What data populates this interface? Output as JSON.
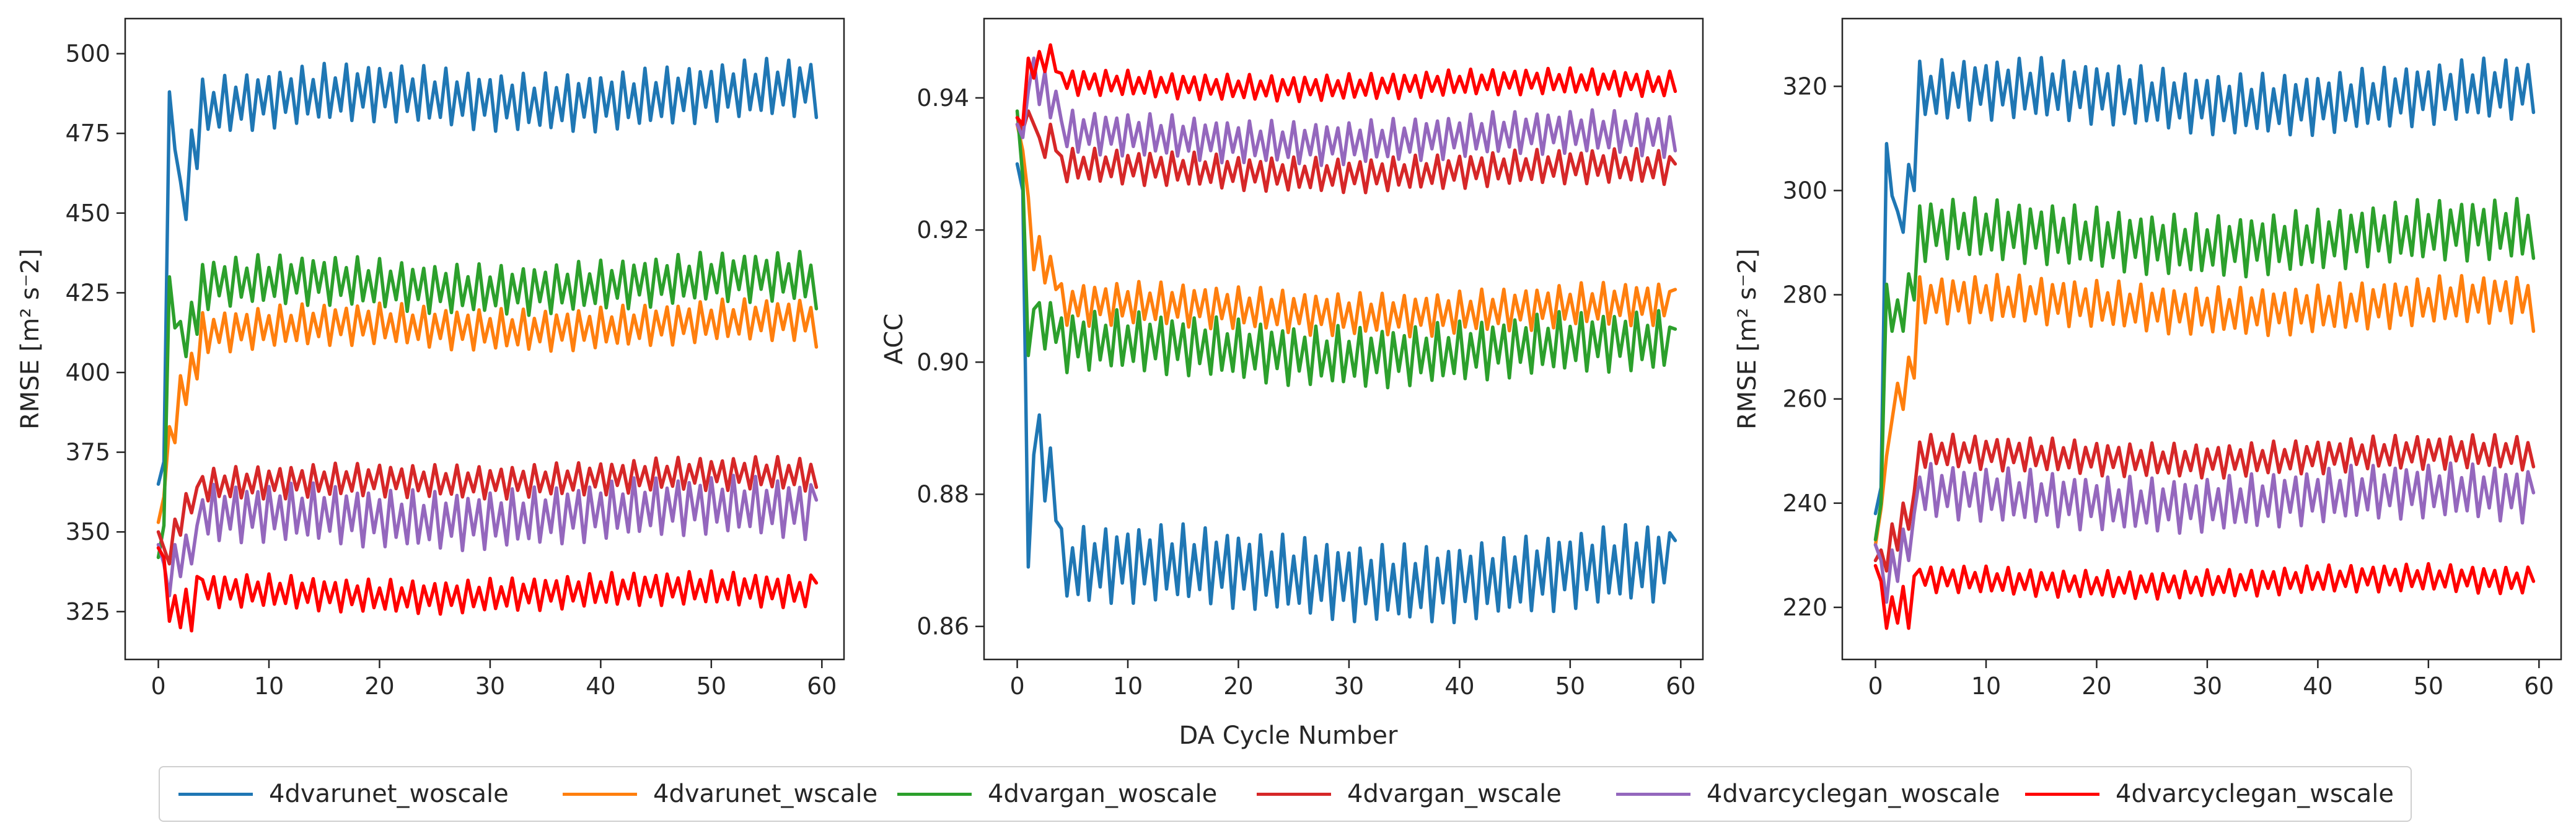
{
  "shared_xlabel": "DA Cycle Number",
  "legend": {
    "placement": "bottom-center",
    "entries": [
      {
        "label": "4dvarunet_woscale",
        "color": "#1f77b4"
      },
      {
        "label": "4dvarunet_wscale",
        "color": "#ff7f0e"
      },
      {
        "label": "4dvargan_woscale",
        "color": "#2ca02c"
      },
      {
        "label": "4dvargan_wscale",
        "color": "#d62728"
      },
      {
        "label": "4dvarcyclegan_woscale",
        "color": "#9467bd"
      },
      {
        "label": "4dvarcyclegan_wscale",
        "color": "#ff0000"
      }
    ]
  },
  "chart_data": [
    {
      "type": "line",
      "ylabel": "RMSE [m² s⁻2]",
      "xlim": [
        -3,
        62
      ],
      "ylim": [
        310,
        511
      ],
      "xticks": [
        0,
        10,
        20,
        30,
        40,
        50,
        60
      ],
      "yticks": [
        325,
        350,
        375,
        400,
        425,
        450,
        475,
        500
      ],
      "grid": false,
      "x_start": 0,
      "x_step": 0.5,
      "series": [
        {
          "name": "4dvarunet_woscale",
          "color": "#1f77b4",
          "start": 365,
          "early": [
            372,
            488,
            470,
            460,
            448,
            476,
            464
          ],
          "level": 487,
          "settle": 480,
          "ramp_end": 20,
          "amp": 7,
          "phase": 0.0,
          "last": 480
        },
        {
          "name": "4dvarunet_wscale",
          "color": "#ff7f0e",
          "start": 353,
          "early": [
            361,
            383,
            378,
            399,
            390,
            406,
            398
          ],
          "level": 415,
          "settle": 410,
          "ramp_end": 20,
          "amp": 5,
          "phase": 0.3,
          "last": 408
        },
        {
          "name": "4dvargan_woscale",
          "color": "#2ca02c",
          "start": 342,
          "early": [
            352,
            430,
            414,
            416,
            405,
            422,
            412
          ],
          "level": 428,
          "settle": 425,
          "ramp_end": 15,
          "amp": 6,
          "phase": 0.6,
          "last": 420
        },
        {
          "name": "4dvargan_wscale",
          "color": "#d62728",
          "start": 350,
          "early": [
            345,
            340,
            354,
            349,
            362,
            356,
            364
          ],
          "level": 367,
          "settle": 362,
          "ramp_end": 20,
          "amp": 4,
          "phase": 0.9,
          "last": 364
        },
        {
          "name": "4dvarcyclegan_woscale",
          "color": "#9467bd",
          "start": 346,
          "early": [
            340,
            330,
            346,
            336,
            349,
            340,
            352
          ],
          "level": 356,
          "settle": 352,
          "ramp_end": 15,
          "amp": 7,
          "phase": 1.2,
          "last": 360
        },
        {
          "name": "4dvarcyclegan_wscale",
          "color": "#ff0000",
          "start": 345,
          "early": [
            342,
            322,
            330,
            320,
            332,
            319,
            336
          ],
          "level": 331,
          "settle": 330,
          "ramp_end": 10,
          "amp": 4,
          "phase": 1.5,
          "last": 334
        }
      ]
    },
    {
      "type": "line",
      "ylabel": "ACC",
      "xlim": [
        -3,
        62
      ],
      "ylim": [
        0.855,
        0.952
      ],
      "xticks": [
        0,
        10,
        20,
        30,
        40,
        50,
        60
      ],
      "yticks": [
        0.86,
        0.88,
        0.9,
        0.92,
        0.94
      ],
      "grid": false,
      "x_start": 0,
      "x_step": 0.5,
      "series": [
        {
          "name": "4dvarunet_woscale",
          "color": "#1f77b4",
          "start": 0.93,
          "early": [
            0.926,
            0.869,
            0.886,
            0.892,
            0.879,
            0.887,
            0.876
          ],
          "level": 0.868,
          "settle": 0.868,
          "ramp_end": 15,
          "amp": 0.0045,
          "phase": 0.0,
          "last": 0.873
        },
        {
          "name": "4dvarunet_wscale",
          "color": "#ff7f0e",
          "start": 0.936,
          "early": [
            0.932,
            0.925,
            0.914,
            0.919,
            0.912,
            0.916,
            0.911
          ],
          "level": 0.908,
          "settle": 0.908,
          "ramp_end": 15,
          "amp": 0.0025,
          "phase": 0.3,
          "last": 0.911
        },
        {
          "name": "4dvargan_woscale",
          "color": "#2ca02c",
          "start": 0.938,
          "early": [
            0.928,
            0.901,
            0.908,
            0.909,
            0.902,
            0.909,
            0.903
          ],
          "level": 0.902,
          "settle": 0.902,
          "ramp_end": 15,
          "amp": 0.0035,
          "phase": 0.6,
          "last": 0.905
        },
        {
          "name": "4dvargan_wscale",
          "color": "#d62728",
          "start": 0.937,
          "early": [
            0.935,
            0.938,
            0.936,
            0.934,
            0.931,
            0.936,
            0.932
          ],
          "level": 0.929,
          "settle": 0.929,
          "ramp_end": 15,
          "amp": 0.002,
          "phase": 0.9,
          "last": 0.93
        },
        {
          "name": "4dvarcyclegan_woscale",
          "color": "#9467bd",
          "start": 0.936,
          "early": [
            0.934,
            0.941,
            0.946,
            0.939,
            0.944,
            0.937,
            0.941
          ],
          "level": 0.934,
          "settle": 0.934,
          "ramp_end": 15,
          "amp": 0.0025,
          "phase": 1.2,
          "last": 0.932
        },
        {
          "name": "4dvarcyclegan_wscale",
          "color": "#ff0000",
          "start": 0.937,
          "early": [
            0.936,
            0.946,
            0.943,
            0.947,
            0.944,
            0.948,
            0.944
          ],
          "level": 0.942,
          "settle": 0.942,
          "ramp_end": 15,
          "amp": 0.0015,
          "phase": 1.5,
          "last": 0.941
        }
      ]
    },
    {
      "type": "line",
      "ylabel": "RMSE [m² s⁻2]",
      "xlim": [
        -3,
        62
      ],
      "ylim": [
        210,
        333
      ],
      "xticks": [
        0,
        10,
        20,
        30,
        40,
        50,
        60
      ],
      "yticks": [
        220,
        240,
        260,
        280,
        300,
        320
      ],
      "grid": false,
      "x_start": 0,
      "x_step": 0.5,
      "series": [
        {
          "name": "4dvarunet_woscale",
          "color": "#1f77b4",
          "start": 238,
          "early": [
            243,
            309,
            299,
            296,
            292,
            305,
            300
          ],
          "level": 318,
          "settle": 318,
          "ramp_end": 20,
          "amp": 4.5,
          "phase": 0.0,
          "last": 315
        },
        {
          "name": "4dvarunet_wscale",
          "color": "#ff7f0e",
          "start": 232,
          "early": [
            239,
            249,
            256,
            263,
            258,
            268,
            264
          ],
          "level": 278,
          "settle": 278,
          "ramp_end": 20,
          "amp": 3.5,
          "phase": 0.3,
          "last": 273
        },
        {
          "name": "4dvargan_woscale",
          "color": "#2ca02c",
          "start": 233,
          "early": [
            240,
            282,
            273,
            279,
            273,
            284,
            279
          ],
          "level": 291,
          "settle": 291,
          "ramp_end": 20,
          "amp": 4.5,
          "phase": 0.6,
          "last": 287
        },
        {
          "name": "4dvargan_wscale",
          "color": "#d62728",
          "start": 229,
          "early": [
            231,
            227,
            236,
            231,
            240,
            235,
            242
          ],
          "level": 249,
          "settle": 249,
          "ramp_end": 20,
          "amp": 2.5,
          "phase": 0.9,
          "last": 247
        },
        {
          "name": "4dvarcyclegan_woscale",
          "color": "#9467bd",
          "start": 232,
          "early": [
            229,
            221,
            231,
            225,
            235,
            229,
            238
          ],
          "level": 241,
          "settle": 241,
          "ramp_end": 20,
          "amp": 4,
          "phase": 1.2,
          "last": 242
        },
        {
          "name": "4dvarcyclegan_wscale",
          "color": "#ff0000",
          "start": 228,
          "early": [
            225,
            216,
            222,
            217,
            224,
            216,
            226
          ],
          "level": 225,
          "settle": 225,
          "ramp_end": 10,
          "amp": 2,
          "phase": 1.5,
          "last": 225
        }
      ]
    }
  ]
}
